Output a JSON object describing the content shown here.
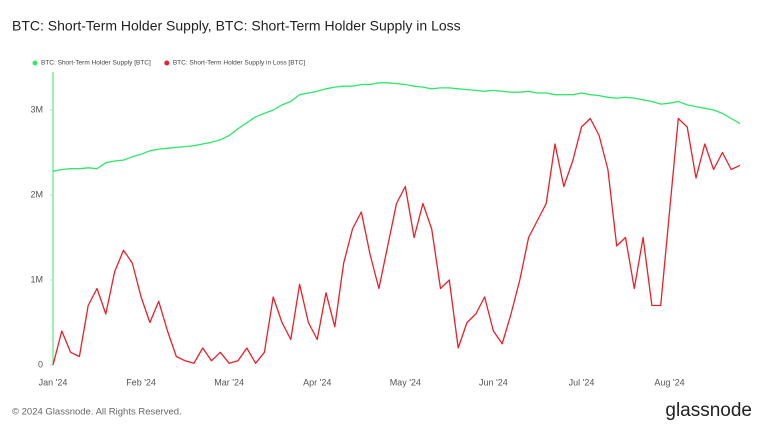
{
  "chart_data": {
    "type": "line",
    "title": "BTC: Short-Term Holder Supply, BTC: Short-Term Holder Supply in Loss",
    "categories": [
      "Jan '24",
      null,
      null,
      null,
      null,
      null,
      null,
      null,
      null,
      null,
      "Feb '24",
      null,
      null,
      null,
      null,
      null,
      null,
      null,
      null,
      null,
      "Mar '24",
      null,
      null,
      null,
      null,
      null,
      null,
      null,
      null,
      null,
      "Apr '24",
      null,
      null,
      null,
      null,
      null,
      null,
      null,
      null,
      null,
      "May '24",
      null,
      null,
      null,
      null,
      null,
      null,
      null,
      null,
      null,
      "Jun '24",
      null,
      null,
      null,
      null,
      null,
      null,
      null,
      null,
      null,
      "Jul '24",
      null,
      null,
      null,
      null,
      null,
      null,
      null,
      null,
      null,
      "Aug '24",
      null,
      null,
      null,
      null,
      null,
      null,
      null,
      null
    ],
    "series": [
      {
        "name": "BTC: Short-Term Holder Supply [BTC]",
        "color": "#2ee86a",
        "values": [
          2280000,
          2300000,
          2310000,
          2310000,
          2320000,
          2310000,
          2380000,
          2400000,
          2410000,
          2450000,
          2480000,
          2520000,
          2540000,
          2550000,
          2560000,
          2570000,
          2580000,
          2600000,
          2620000,
          2650000,
          2700000,
          2780000,
          2850000,
          2920000,
          2960000,
          3000000,
          3060000,
          3100000,
          3180000,
          3200000,
          3220000,
          3250000,
          3270000,
          3280000,
          3280000,
          3300000,
          3300000,
          3320000,
          3320000,
          3310000,
          3300000,
          3280000,
          3270000,
          3250000,
          3260000,
          3260000,
          3250000,
          3240000,
          3230000,
          3220000,
          3230000,
          3220000,
          3210000,
          3210000,
          3220000,
          3200000,
          3200000,
          3180000,
          3180000,
          3180000,
          3200000,
          3180000,
          3170000,
          3150000,
          3140000,
          3150000,
          3140000,
          3120000,
          3100000,
          3070000,
          3080000,
          3100000,
          3060000,
          3040000,
          3020000,
          3000000,
          2960000,
          2900000,
          2840000
        ]
      },
      {
        "name": "BTC: Short-Term Holder Supply in Loss [BTC]",
        "color": "#e8202a",
        "values": [
          0,
          400000,
          150000,
          100000,
          700000,
          900000,
          600000,
          1100000,
          1350000,
          1200000,
          800000,
          500000,
          750000,
          400000,
          100000,
          50000,
          20000,
          200000,
          50000,
          150000,
          20000,
          50000,
          200000,
          20000,
          150000,
          800000,
          500000,
          300000,
          950000,
          500000,
          300000,
          850000,
          450000,
          1200000,
          1600000,
          1800000,
          1300000,
          900000,
          1400000,
          1900000,
          2100000,
          1500000,
          1900000,
          1600000,
          900000,
          1000000,
          200000,
          500000,
          600000,
          800000,
          400000,
          250000,
          600000,
          1000000,
          1500000,
          1700000,
          1900000,
          2600000,
          2100000,
          2400000,
          2800000,
          2900000,
          2700000,
          2300000,
          1400000,
          1500000,
          900000,
          1500000,
          700000,
          700000,
          1800000,
          2900000,
          2800000,
          2200000,
          2600000,
          2300000,
          2500000,
          2300000,
          2350000
        ]
      }
    ],
    "ylim": [
      0,
      3400000
    ],
    "yticks": [
      0,
      {
        "value": 1000000,
        "label": "1M"
      },
      {
        "value": 2000000,
        "label": "2M"
      },
      {
        "value": 3000000,
        "label": "3M"
      }
    ],
    "grid": false,
    "legend": "top-left",
    "copyright": "© 2024 Glassnode. All Rights Reserved.",
    "brand": "glassnode"
  }
}
